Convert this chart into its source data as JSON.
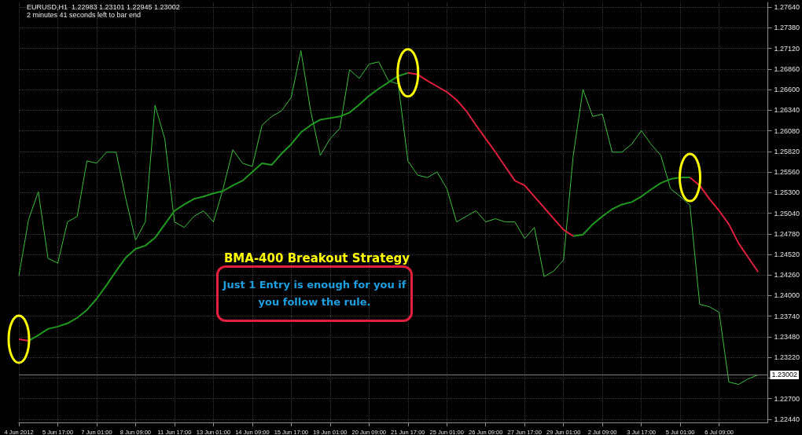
{
  "chart_data": {
    "type": "line",
    "title": "BMA-400 Breakout Strategy",
    "annotations": [
      "EURUSD,H1  1.22983 1.23101 1.22945 1.23002",
      "2 minutes 41 seconds left to bar end",
      "Just 1 Entry is enough for you if you follow the rule."
    ],
    "categories": [
      "4 Jun 2012",
      null,
      null,
      null,
      "5 Jun 17:00",
      null,
      null,
      null,
      "7 Jun 01:00",
      null,
      null,
      null,
      "8 Jun 09:00",
      null,
      null,
      null,
      "11 Jun 17:00",
      null,
      null,
      null,
      "13 Jun 01:00",
      null,
      null,
      null,
      "14 Jun 09:00",
      null,
      null,
      null,
      "15 Jun 17:00",
      null,
      null,
      null,
      "19 Jun 01:00",
      null,
      null,
      null,
      "20 Jun 09:00",
      null,
      null,
      null,
      "21 Jun 17:00",
      null,
      null,
      null,
      "25 Jun 01:00",
      null,
      null,
      null,
      "26 Jun 09:00",
      null,
      null,
      null,
      "27 Jun 17:00",
      null,
      null,
      null,
      "29 Jun 01:00",
      null,
      null,
      null,
      "2 Jul 09:00",
      null,
      null,
      null,
      "3 Jul 17:00",
      null,
      null,
      null,
      "5 Jul 01:00",
      null,
      null,
      null,
      "6 Jul 09:00",
      null,
      null,
      null,
      null,
      null
    ],
    "series": [
      {
        "color": "#3cc03c",
        "values": [
          1.2425,
          1.2496,
          1.2531,
          1.2447,
          1.2441,
          1.2493,
          1.25,
          1.257,
          1.2567,
          1.2581,
          1.2581,
          1.2522,
          1.247,
          1.2493,
          1.264,
          1.2598,
          1.2493,
          1.2486,
          1.25,
          1.2507,
          1.2493,
          1.2535,
          1.2584,
          1.2567,
          1.2563,
          1.2615,
          1.2626,
          1.2633,
          1.265,
          1.2709,
          1.2633,
          1.2577,
          1.2598,
          1.2611,
          1.2685,
          1.2674,
          1.2692,
          1.2695,
          1.2671,
          1.2667,
          1.257,
          1.2552,
          1.2549,
          1.2556,
          1.2535,
          1.2493,
          1.25,
          1.2507,
          1.2493,
          1.2497,
          1.2493,
          1.2493,
          1.2472,
          1.2486,
          1.2424,
          1.2431,
          1.2445,
          1.2577,
          1.266,
          1.2626,
          1.2629,
          1.2581,
          1.2581,
          1.2591,
          1.2608,
          1.2591,
          1.2577,
          1.2535,
          1.2525,
          1.2514,
          1.2389,
          1.2386,
          1.2379,
          1.2291,
          1.2288,
          1.2295,
          1.23,
          null
        ]
      },
      {
        "color": "#1f9a1f",
        "values": [
          null,
          1.2343,
          1.235,
          1.2358,
          1.2361,
          1.2365,
          1.2372,
          1.2382,
          1.2396,
          1.2413,
          1.2431,
          1.2448,
          1.2459,
          1.2463,
          1.2473,
          1.249,
          1.2507,
          1.2515,
          1.2522,
          1.2525,
          1.2529,
          1.2532,
          1.2539,
          1.2545,
          1.2556,
          1.2567,
          1.2565,
          1.2579,
          1.2591,
          1.2606,
          1.2615,
          1.2622,
          1.2624,
          1.2626,
          1.2631,
          1.2641,
          1.2652,
          1.2661,
          1.2669,
          1.2677,
          1.2681,
          null,
          null,
          null,
          null,
          null,
          null,
          null,
          null,
          null,
          null,
          null,
          null,
          null,
          null,
          null,
          null,
          1.2475,
          1.2477,
          1.249,
          1.25,
          1.2509,
          1.2515,
          1.2518,
          1.2525,
          1.2534,
          1.2542,
          1.2547,
          1.2549,
          1.2549,
          null,
          null,
          null,
          null,
          null,
          null,
          null,
          null
        ]
      },
      {
        "color": "#e0203c",
        "values": [
          1.2345,
          1.2343,
          null,
          null,
          null,
          null,
          null,
          null,
          null,
          null,
          null,
          null,
          null,
          null,
          null,
          null,
          null,
          null,
          null,
          null,
          null,
          null,
          null,
          null,
          null,
          null,
          null,
          null,
          null,
          null,
          null,
          null,
          null,
          null,
          null,
          null,
          null,
          null,
          null,
          null,
          1.2681,
          1.2679,
          1.2671,
          1.2664,
          1.2657,
          1.2647,
          1.2633,
          1.2615,
          1.2598,
          1.2581,
          1.2563,
          1.2545,
          1.2539,
          1.2525,
          1.2511,
          1.2497,
          1.2483,
          1.2475,
          null,
          null,
          null,
          null,
          null,
          null,
          null,
          null,
          null,
          null,
          null,
          1.2549,
          1.2539,
          1.2522,
          1.2507,
          1.249,
          1.2466,
          1.2448,
          1.243,
          null
        ]
      }
    ],
    "ylim": [
      1.224,
      1.277
    ],
    "yticks": [
      {
        "value": 1.2244,
        "label": "1.22440"
      },
      {
        "value": 1.227,
        "label": "1.22700"
      },
      {
        "value": 1.2296,
        "label": null
      },
      {
        "value": 1.2322,
        "label": "1.23220"
      },
      {
        "value": 1.2348,
        "label": "1.23480"
      },
      {
        "value": 1.2374,
        "label": "1.23740"
      },
      {
        "value": 1.24,
        "label": "1.24000"
      },
      {
        "value": 1.2426,
        "label": "1.24260"
      },
      {
        "value": 1.2452,
        "label": "1.24520"
      },
      {
        "value": 1.2478,
        "label": "1.24780"
      },
      {
        "value": 1.2504,
        "label": "1.25040"
      },
      {
        "value": 1.253,
        "label": "1.25300"
      },
      {
        "value": 1.2556,
        "label": "1.25560"
      },
      {
        "value": 1.2582,
        "label": "1.25820"
      },
      {
        "value": 1.2608,
        "label": "1.26080"
      },
      {
        "value": 1.2634,
        "label": "1.26340"
      },
      {
        "value": 1.266,
        "label": "1.26600"
      },
      {
        "value": 1.2686,
        "label": "1.26860"
      },
      {
        "value": 1.2712,
        "label": "1.27120"
      },
      {
        "value": 1.2738,
        "label": "1.27380"
      },
      {
        "value": 1.2764,
        "label": "1.27640"
      }
    ],
    "ref_lines": [
      {
        "axis": "y",
        "value": 1.23002,
        "label": "1.23002",
        "color": "#808080"
      }
    ],
    "grid": true,
    "marker": "none",
    "line_style": "solid"
  }
}
